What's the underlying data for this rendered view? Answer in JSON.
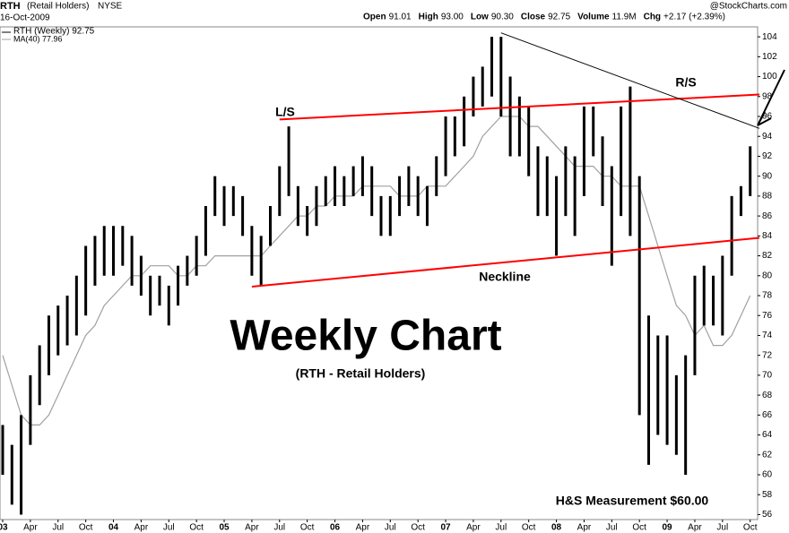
{
  "header": {
    "symbol": "RTH",
    "name": "(Retail Holders)",
    "exchange": "NYSE",
    "date": "16-Oct-2009",
    "source": "@StockCharts.com",
    "quote": [
      {
        "label": "Open",
        "value": "91.01"
      },
      {
        "label": "High",
        "value": "93.00"
      },
      {
        "label": "Low",
        "value": "90.30"
      },
      {
        "label": "Close",
        "value": "92.75"
      },
      {
        "label": "Volume",
        "value": "11.9M"
      },
      {
        "label": "Chg",
        "value": "+2.17 (+2.39%)"
      }
    ]
  },
  "chart_data": {
    "type": "ohlc",
    "title": "Weekly Chart",
    "subtitle": "(RTH - Retail Holders)",
    "x": [
      "2003-01",
      "2003-02",
      "2003-03",
      "2003-04",
      "2003-05",
      "2003-06",
      "2003-07",
      "2003-08",
      "2003-09",
      "2003-10",
      "2003-11",
      "2003-12",
      "2004-01",
      "2004-02",
      "2004-03",
      "2004-04",
      "2004-05",
      "2004-06",
      "2004-07",
      "2004-08",
      "2004-09",
      "2004-10",
      "2004-11",
      "2004-12",
      "2005-01",
      "2005-02",
      "2005-03",
      "2005-04",
      "2005-05",
      "2005-06",
      "2005-07",
      "2005-08",
      "2005-09",
      "2005-10",
      "2005-11",
      "2005-12",
      "2006-01",
      "2006-02",
      "2006-03",
      "2006-04",
      "2006-05",
      "2006-06",
      "2006-07",
      "2006-08",
      "2006-09",
      "2006-10",
      "2006-11",
      "2006-12",
      "2007-01",
      "2007-02",
      "2007-03",
      "2007-04",
      "2007-05",
      "2007-06",
      "2007-07",
      "2007-08",
      "2007-09",
      "2007-10",
      "2007-11",
      "2007-12",
      "2008-01",
      "2008-02",
      "2008-03",
      "2008-04",
      "2008-05",
      "2008-06",
      "2008-07",
      "2008-08",
      "2008-09",
      "2008-10",
      "2008-11",
      "2008-12",
      "2009-01",
      "2009-02",
      "2009-03",
      "2009-04",
      "2009-05",
      "2009-06",
      "2009-07",
      "2009-08",
      "2009-09",
      "2009-10"
    ],
    "series": [
      {
        "name": "RTH (Weekly) 92.75",
        "color": "#000000",
        "high": [
          65,
          63,
          66,
          70,
          73,
          76,
          77,
          78,
          80,
          83,
          84,
          85,
          85,
          85,
          84,
          82,
          80,
          80,
          79,
          81,
          82,
          84,
          87,
          90,
          89,
          89,
          88,
          85,
          84,
          87,
          91,
          95,
          89,
          87,
          89,
          90,
          91,
          90,
          91,
          92,
          91,
          88,
          88,
          90,
          91,
          90,
          89,
          92,
          96,
          96,
          98,
          100,
          101,
          104,
          104,
          100,
          98,
          97,
          93,
          92,
          90,
          93,
          92,
          97,
          97,
          94,
          91,
          97,
          99,
          90,
          76,
          74,
          74,
          70,
          72,
          80,
          81,
          80,
          82,
          88,
          89,
          93
        ],
        "low": [
          60,
          57,
          56,
          63,
          67,
          70,
          72,
          73,
          74,
          76,
          79,
          80,
          80,
          81,
          79,
          78,
          76,
          77,
          75,
          77,
          79,
          80,
          82,
          86,
          85,
          86,
          84,
          80,
          79,
          83,
          86,
          88,
          85,
          84,
          85,
          87,
          87,
          87,
          88,
          88,
          86,
          84,
          84,
          86,
          87,
          86,
          85,
          88,
          90,
          92,
          93,
          96,
          97,
          98,
          96,
          92,
          92,
          90,
          86,
          86,
          82,
          86,
          84,
          88,
          92,
          87,
          81,
          86,
          84,
          66,
          61,
          64,
          63,
          62,
          60,
          70,
          75,
          75,
          74,
          80,
          86,
          88
        ]
      },
      {
        "name": "MA(40) 77.96",
        "color": "#a0a0a0",
        "values": [
          72,
          69,
          66,
          65,
          65,
          66,
          68,
          70,
          72,
          74,
          75,
          77,
          78,
          79,
          80,
          80,
          81,
          81,
          81,
          80,
          80,
          81,
          81,
          82,
          82,
          82,
          82,
          82,
          82,
          83,
          84,
          85,
          86,
          86,
          87,
          87,
          88,
          88,
          88,
          89,
          89,
          89,
          89,
          88,
          88,
          88,
          89,
          89,
          89,
          90,
          91,
          92,
          94,
          95,
          96,
          96,
          96,
          95,
          95,
          94,
          93,
          92,
          91,
          91,
          91,
          90,
          90,
          89,
          89,
          89,
          86,
          83,
          80,
          77,
          76,
          74,
          75,
          73,
          73,
          74,
          76,
          78
        ]
      }
    ],
    "trendlines": [
      {
        "color": "#ff0000",
        "from": [
          "2005-04",
          78.9
        ],
        "to": [
          "2009-11",
          83.8
        ]
      },
      {
        "color": "#ff0000",
        "from": [
          "2005-07",
          95.7
        ],
        "to": [
          "2009-11",
          98.2
        ]
      },
      {
        "color": "#000000",
        "from": [
          "2007-07",
          104.4
        ],
        "to": [
          "2009-11",
          94.8
        ]
      }
    ],
    "annotations": [
      "L/S",
      "R/S",
      "Neckline",
      "H&S Measurement $60.00"
    ],
    "xlim": [
      "2003-01",
      "2009-11"
    ],
    "xticks": [
      {
        "value": "2003-01",
        "label": "03"
      },
      {
        "value": "2003-04",
        "label": "Apr"
      },
      {
        "value": "2003-07",
        "label": "Jul"
      },
      {
        "value": "2003-10",
        "label": "Oct"
      },
      {
        "value": "2004-01",
        "label": "04"
      },
      {
        "value": "2004-04",
        "label": "Apr"
      },
      {
        "value": "2004-07",
        "label": "Jul"
      },
      {
        "value": "2004-10",
        "label": "Oct"
      },
      {
        "value": "2005-01",
        "label": "05"
      },
      {
        "value": "2005-04",
        "label": "Apr"
      },
      {
        "value": "2005-07",
        "label": "Jul"
      },
      {
        "value": "2005-10",
        "label": "Oct"
      },
      {
        "value": "2006-01",
        "label": "06"
      },
      {
        "value": "2006-04",
        "label": "Apr"
      },
      {
        "value": "2006-07",
        "label": "Jul"
      },
      {
        "value": "2006-10",
        "label": "Oct"
      },
      {
        "value": "2007-01",
        "label": "07"
      },
      {
        "value": "2007-04",
        "label": "Apr"
      },
      {
        "value": "2007-07",
        "label": "Jul"
      },
      {
        "value": "2007-10",
        "label": "Oct"
      },
      {
        "value": "2008-01",
        "label": "08"
      },
      {
        "value": "2008-04",
        "label": "Apr"
      },
      {
        "value": "2008-07",
        "label": "Jul"
      },
      {
        "value": "2008-10",
        "label": "Oct"
      },
      {
        "value": "2009-01",
        "label": "09"
      },
      {
        "value": "2009-04",
        "label": "Apr"
      },
      {
        "value": "2009-07",
        "label": "Jul"
      },
      {
        "value": "2009-10",
        "label": "Oct"
      }
    ],
    "ylim": [
      55.5,
      105
    ],
    "yticks": [
      56,
      58,
      60,
      62,
      64,
      66,
      68,
      70,
      72,
      74,
      76,
      78,
      80,
      82,
      84,
      86,
      88,
      90,
      92,
      94,
      96,
      98,
      100,
      102,
      104
    ]
  }
}
